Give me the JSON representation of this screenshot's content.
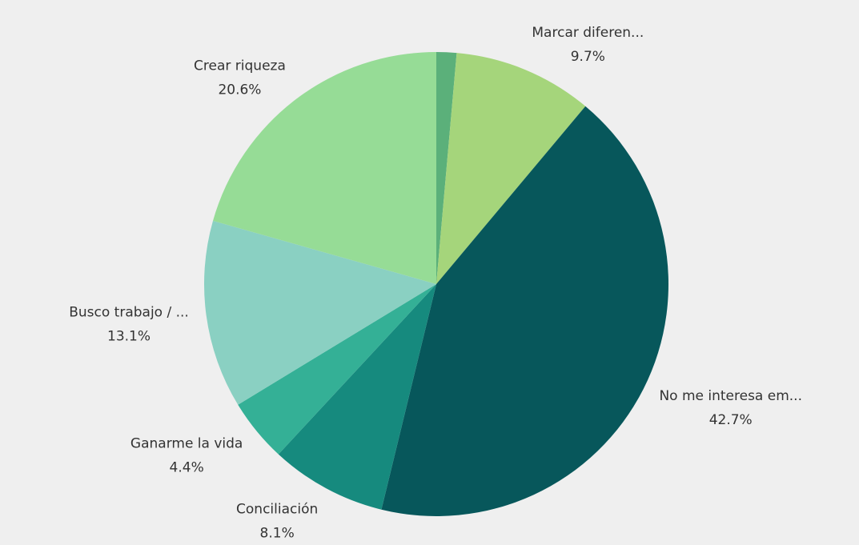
{
  "chart_data": {
    "type": "pie",
    "categories": [
      null,
      "Marcar diferen...",
      "No me interesa em...",
      "Conciliación",
      "Ganarme la vida",
      "Busco trabajo / ...",
      "Crear riqueza"
    ],
    "values": [
      1.4,
      9.7,
      42.7,
      8.1,
      4.4,
      13.1,
      20.6
    ],
    "value_labels": [
      null,
      "9.7%",
      "42.7%",
      "8.1%",
      "4.4%",
      "13.1%",
      "20.6%"
    ],
    "colors": [
      "#5bb07a",
      "#a5d57b",
      "#07575b",
      "#168a7e",
      "#34b096",
      "#8ad0c2",
      "#96dc96"
    ]
  }
}
